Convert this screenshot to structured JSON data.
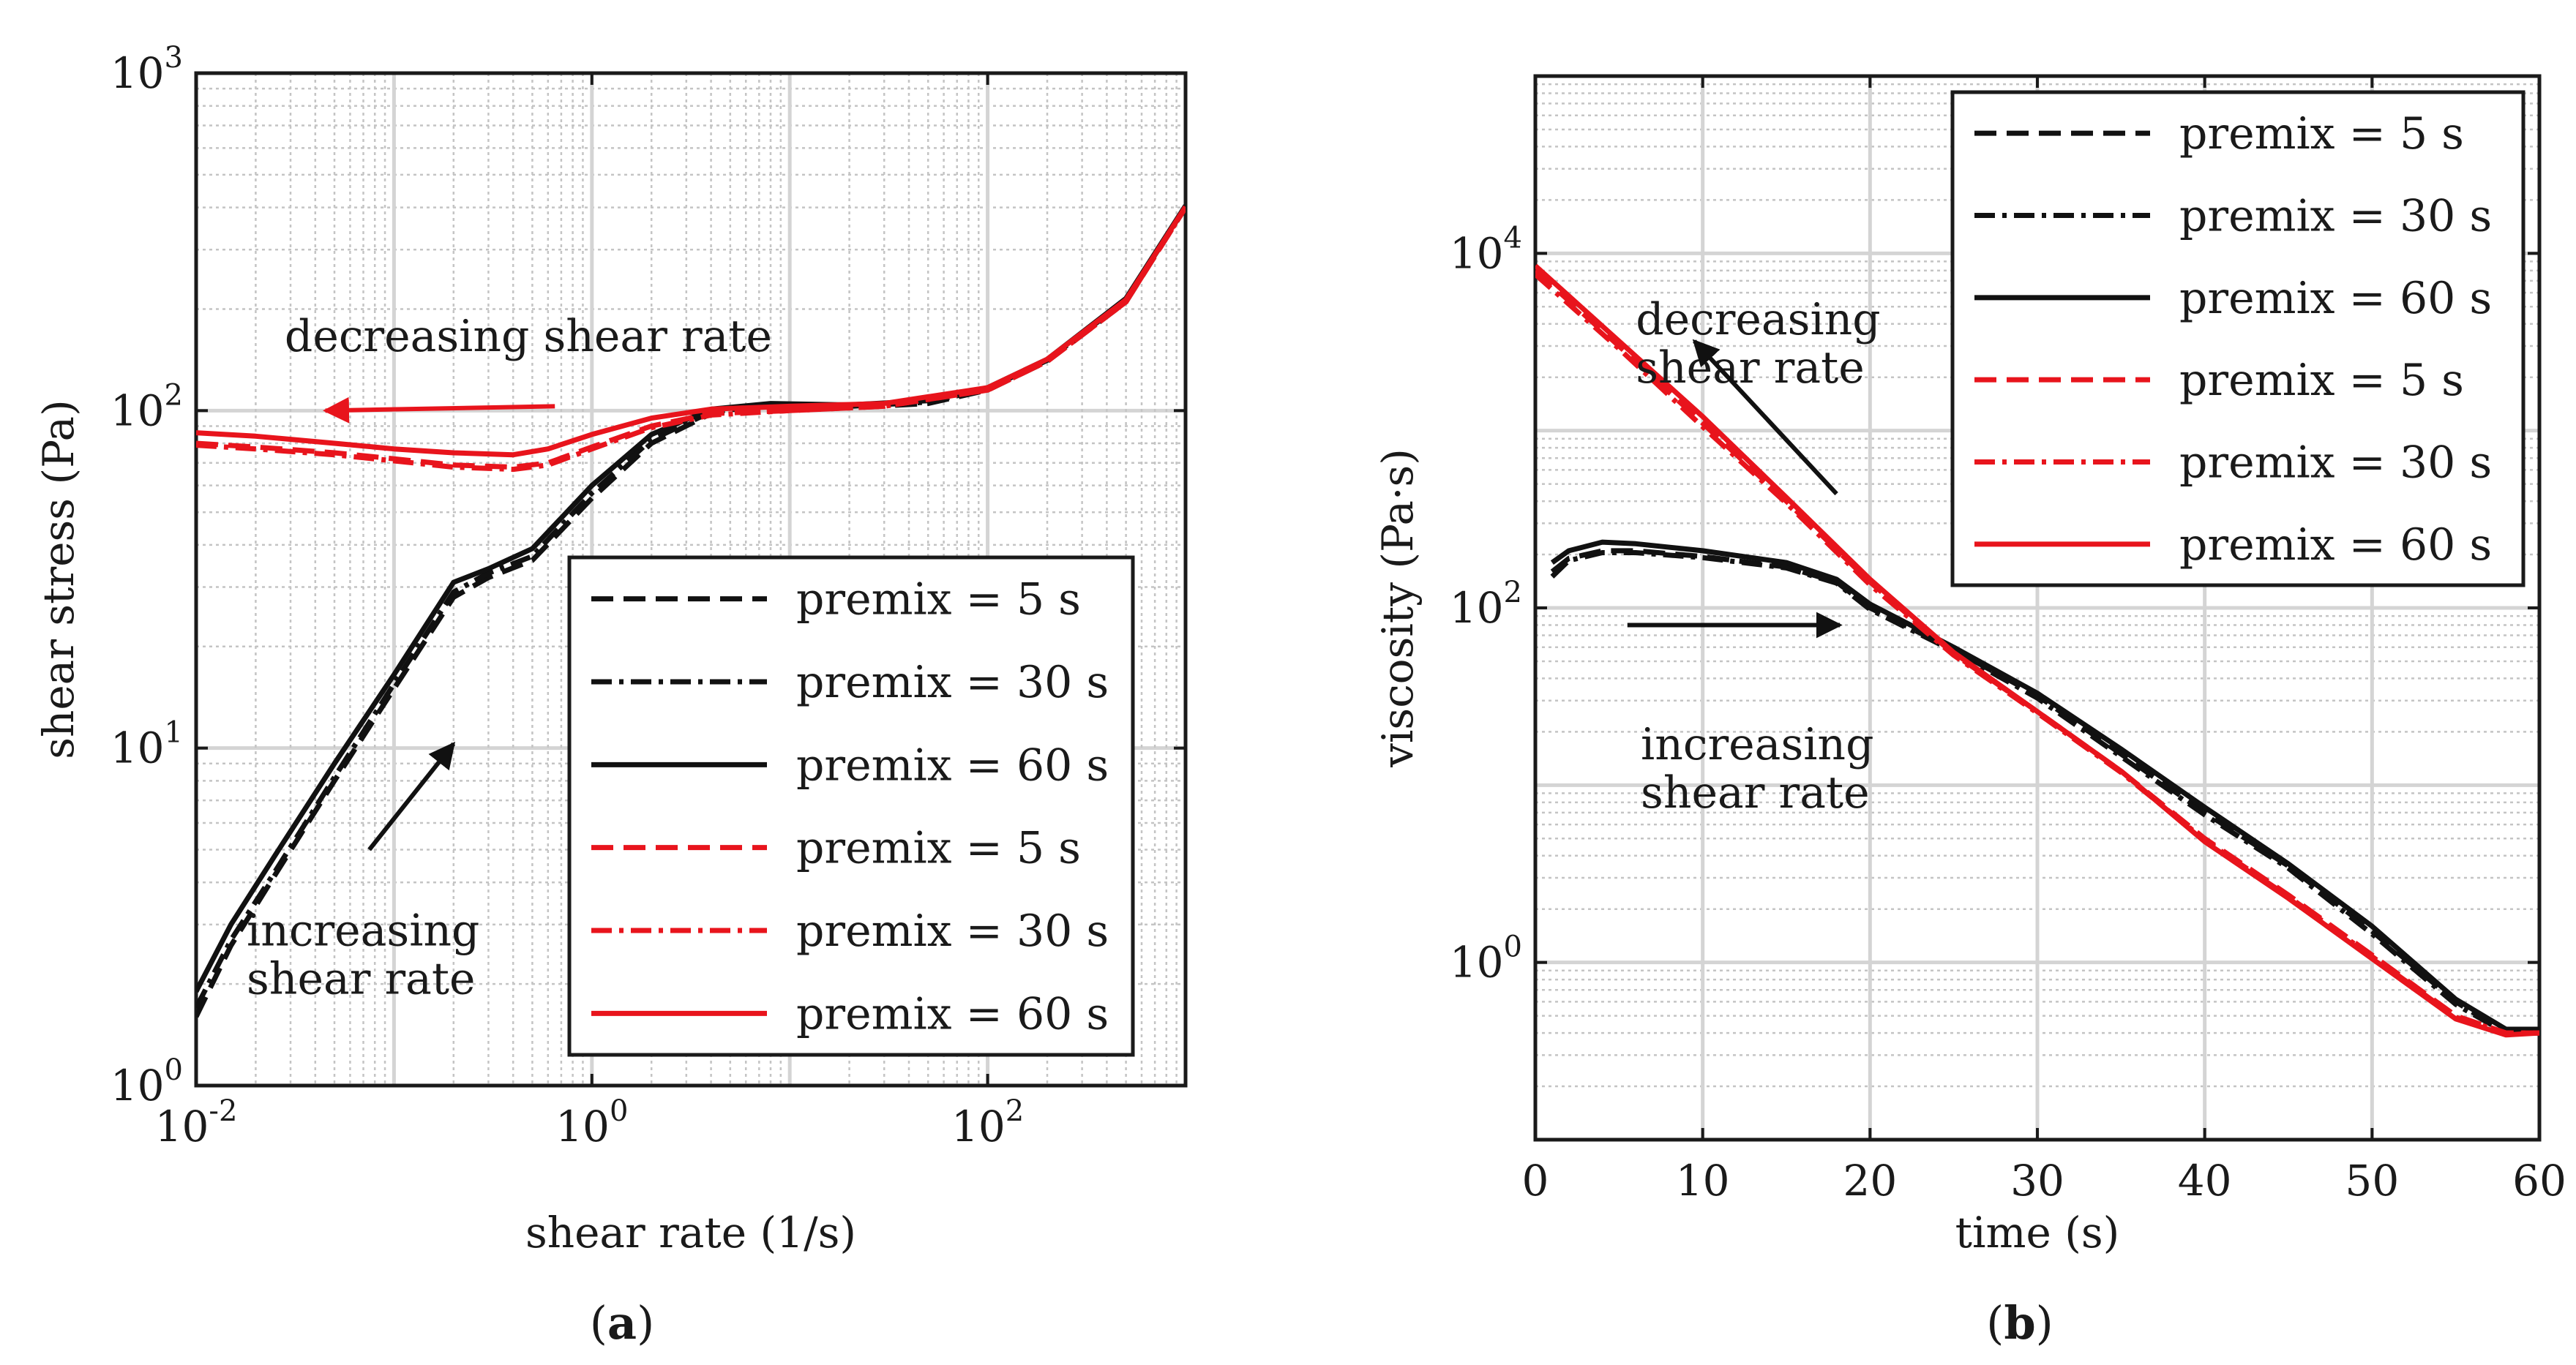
{
  "chart_data": [
    {
      "type": "line",
      "panel_label": "(a)",
      "xlabel": "shear rate (1/s)",
      "ylabel": "shear stress (Pa)",
      "xscale": "log",
      "yscale": "log",
      "xlim": [
        0.01,
        1000
      ],
      "ylim": [
        1,
        1000
      ],
      "xticks": [
        {
          "v": 0.01,
          "base": "10",
          "exp": "-2"
        },
        {
          "v": 1,
          "base": "10",
          "exp": "0"
        },
        {
          "v": 100,
          "base": "10",
          "exp": "2"
        }
      ],
      "yticks": [
        {
          "v": 1,
          "base": "10",
          "exp": "0"
        },
        {
          "v": 10,
          "base": "10",
          "exp": "1"
        },
        {
          "v": 100,
          "base": "10",
          "exp": "2"
        },
        {
          "v": 1000,
          "base": "10",
          "exp": "3"
        }
      ],
      "grid": true,
      "legend_position": "bottom-right",
      "annotations": [
        {
          "lines": [
            "decreasing shear rate"
          ],
          "color": "#e8141c",
          "text_at": [
            0.028,
            150
          ],
          "arrow_from": [
            0.65,
            103
          ],
          "arrow_to": [
            0.045,
            100
          ]
        },
        {
          "lines": [
            "increasing",
            "shear rate"
          ],
          "color": "#111111",
          "text_at": [
            0.018,
            2.6
          ],
          "arrow_from": [
            0.075,
            5.0
          ],
          "arrow_to": [
            0.2,
            10.3
          ]
        }
      ],
      "series": [
        {
          "name": "premix = 5 s",
          "color": "#111111",
          "dash": "dash",
          "x": [
            0.01,
            0.015,
            0.025,
            0.05,
            0.1,
            0.2,
            0.3,
            0.5,
            1,
            2,
            4,
            8,
            20,
            50,
            100,
            200,
            500,
            1000
          ],
          "y": [
            1.6,
            2.6,
            4.2,
            8,
            15,
            28,
            32,
            36,
            55,
            80,
            98,
            103,
            102,
            105,
            115,
            140,
            210,
            400
          ]
        },
        {
          "name": "premix = 30 s",
          "color": "#111111",
          "dash": "dashdot",
          "x": [
            0.01,
            0.015,
            0.025,
            0.05,
            0.1,
            0.2,
            0.3,
            0.5,
            1,
            2,
            4,
            8,
            20,
            50,
            100,
            200,
            500,
            1000
          ],
          "y": [
            1.7,
            2.7,
            4.3,
            8.2,
            15.5,
            29,
            33,
            37,
            57,
            82,
            99,
            104,
            103,
            106,
            116,
            141,
            212,
            402
          ]
        },
        {
          "name": "premix = 60 s",
          "color": "#111111",
          "dash": "solid",
          "x": [
            0.01,
            0.015,
            0.025,
            0.05,
            0.1,
            0.2,
            0.3,
            0.5,
            1,
            2,
            4,
            8,
            20,
            50,
            100,
            200,
            500,
            1000
          ],
          "y": [
            1.9,
            3.0,
            4.8,
            9,
            16.5,
            31,
            34,
            39,
            60,
            85,
            101,
            105,
            104,
            107,
            117,
            142,
            215,
            405
          ]
        },
        {
          "name": "premix = 5 s",
          "color": "#e8141c",
          "dash": "dash",
          "x": [
            0.01,
            0.02,
            0.05,
            0.1,
            0.2,
            0.4,
            0.6,
            1,
            2,
            4,
            10,
            30,
            100,
            200,
            500,
            1000
          ],
          "y": [
            80,
            78,
            75,
            72,
            69,
            68,
            70,
            78,
            90,
            98,
            100,
            103,
            115,
            140,
            210,
            400
          ]
        },
        {
          "name": "premix = 30 s",
          "color": "#e8141c",
          "dash": "dashdot",
          "x": [
            0.01,
            0.02,
            0.05,
            0.1,
            0.2,
            0.4,
            0.6,
            1,
            2,
            4,
            10,
            30,
            100,
            200,
            500,
            1000
          ],
          "y": [
            79,
            77,
            74,
            71,
            68,
            67,
            69,
            77,
            89,
            97,
            100,
            103,
            115,
            140,
            210,
            400
          ]
        },
        {
          "name": "premix = 60 s",
          "color": "#e8141c",
          "dash": "solid",
          "x": [
            0.01,
            0.02,
            0.05,
            0.1,
            0.2,
            0.4,
            0.6,
            1,
            2,
            4,
            10,
            30,
            100,
            200,
            500,
            1000
          ],
          "y": [
            86,
            84,
            80,
            77,
            75,
            74,
            77,
            85,
            95,
            101,
            103,
            105,
            117,
            142,
            213,
            402
          ]
        }
      ]
    },
    {
      "type": "line",
      "panel_label": "(b)",
      "xlabel": "time (s)",
      "ylabel": "viscosity (Pa·s)",
      "xscale": "linear",
      "yscale": "log",
      "xlim": [
        0,
        60
      ],
      "ylim": [
        0.1,
        100000
      ],
      "xticks": [
        {
          "v": 0,
          "t": "0"
        },
        {
          "v": 10,
          "t": "10"
        },
        {
          "v": 20,
          "t": "20"
        },
        {
          "v": 30,
          "t": "30"
        },
        {
          "v": 40,
          "t": "40"
        },
        {
          "v": 50,
          "t": "50"
        },
        {
          "v": 60,
          "t": "60"
        }
      ],
      "yticks": [
        {
          "v": 1,
          "base": "10",
          "exp": "0"
        },
        {
          "v": 100,
          "base": "10",
          "exp": "2"
        },
        {
          "v": 10000,
          "base": "10",
          "exp": "4"
        }
      ],
      "grid": true,
      "legend_position": "top-right",
      "annotations": [
        {
          "lines": [
            "decreasing",
            "shear rate"
          ],
          "color": "#111111",
          "text_at": [
            6,
            3500
          ],
          "arrow_from": [
            18,
            440
          ],
          "arrow_to": [
            9.5,
            3200
          ]
        },
        {
          "lines": [
            "increasing",
            "shear rate"
          ],
          "color": "#111111",
          "text_at": [
            6.3,
            14
          ],
          "arrow_from": [
            5.5,
            80
          ],
          "arrow_to": [
            18.2,
            80
          ]
        }
      ],
      "series": [
        {
          "name": "premix = 5 s",
          "color": "#111111",
          "dash": "dash",
          "x": [
            1,
            2,
            4,
            6,
            10,
            15,
            18,
            20,
            25,
            30,
            35,
            40,
            45,
            50,
            55,
            58,
            60
          ],
          "y": [
            160,
            190,
            210,
            210,
            195,
            170,
            140,
            100,
            58,
            32,
            15,
            7,
            3.5,
            1.5,
            0.6,
            0.4,
            0.4
          ]
        },
        {
          "name": "premix = 30 s",
          "color": "#111111",
          "dash": "dashdot",
          "x": [
            1,
            2,
            4,
            6,
            10,
            15,
            18,
            20,
            25,
            30,
            35,
            40,
            45,
            50,
            55,
            58,
            60
          ],
          "y": [
            150,
            185,
            205,
            205,
            192,
            168,
            138,
            98,
            57,
            31,
            14.5,
            6.8,
            3.4,
            1.45,
            0.58,
            0.4,
            0.4
          ]
        },
        {
          "name": "premix = 60 s",
          "color": "#111111",
          "dash": "solid",
          "x": [
            1,
            2,
            4,
            6,
            10,
            15,
            18,
            20,
            25,
            30,
            35,
            40,
            45,
            50,
            55,
            58,
            60
          ],
          "y": [
            180,
            210,
            235,
            230,
            210,
            180,
            145,
            105,
            60,
            33,
            16,
            7.5,
            3.6,
            1.6,
            0.62,
            0.42,
            0.42
          ]
        },
        {
          "name": "premix = 5 s",
          "color": "#e8141c",
          "dash": "dash",
          "x": [
            0,
            5,
            10,
            15,
            20,
            25,
            30,
            35,
            40,
            45,
            50,
            55,
            58,
            60
          ],
          "y": [
            8000,
            3000,
            1100,
            400,
            140,
            55,
            26,
            12,
            5,
            2.4,
            1.1,
            0.5,
            0.4,
            0.4
          ]
        },
        {
          "name": "premix = 30 s",
          "color": "#e8141c",
          "dash": "dashdot",
          "x": [
            0,
            5,
            10,
            15,
            20,
            25,
            30,
            35,
            40,
            45,
            50,
            55,
            58,
            60
          ],
          "y": [
            7600,
            2900,
            1050,
            390,
            135,
            54,
            25.5,
            11.8,
            4.9,
            2.35,
            1.08,
            0.49,
            0.4,
            0.4
          ]
        },
        {
          "name": "premix = 60 s",
          "color": "#e8141c",
          "dash": "solid",
          "x": [
            0,
            5,
            10,
            15,
            20,
            25,
            30,
            35,
            40,
            45,
            50,
            55,
            58,
            60
          ],
          "y": [
            8500,
            3200,
            1200,
            420,
            145,
            56,
            26,
            12,
            4.8,
            2.3,
            1.05,
            0.48,
            0.39,
            0.4
          ]
        }
      ]
    }
  ]
}
